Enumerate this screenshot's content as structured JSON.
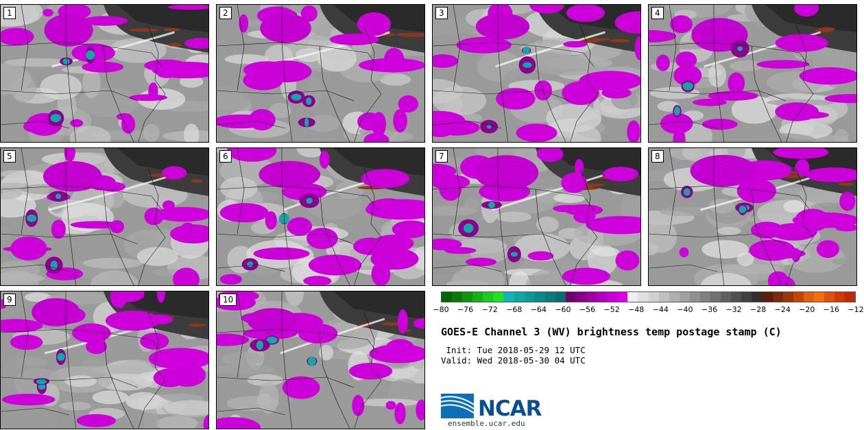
{
  "panels": [
    {
      "label": "1"
    },
    {
      "label": "2"
    },
    {
      "label": "3"
    },
    {
      "label": "4"
    },
    {
      "label": "5"
    },
    {
      "label": "6"
    },
    {
      "label": "7"
    },
    {
      "label": "8"
    },
    {
      "label": "9"
    },
    {
      "label": "10"
    }
  ],
  "colorbar": {
    "ticks": [
      "−80",
      "−76",
      "−72",
      "−68",
      "−64",
      "−60",
      "−56",
      "−52",
      "−48",
      "−44",
      "−40",
      "−36",
      "−32",
      "−28",
      "−24",
      "−20",
      "−16",
      "−12"
    ],
    "colors": [
      "#006400",
      "#0a7a0a",
      "#0f9410",
      "#14b014",
      "#1ccc1c",
      "#20e020",
      "#12b4b4",
      "#10a6a6",
      "#0e9898",
      "#0c8a8a",
      "#0a7c7c",
      "#086e6e",
      "#700070",
      "#86008a",
      "#9c00a4",
      "#b200be",
      "#c800d6",
      "#dc00e8",
      "#f0f0f0",
      "#e0e0e0",
      "#d0d0d0",
      "#c0c0c0",
      "#b0b0b0",
      "#a0a0a0",
      "#909090",
      "#808080",
      "#707070",
      "#606060",
      "#505050",
      "#404040",
      "#303030",
      "#5a1f0a",
      "#7a2a0a",
      "#9a350a",
      "#c0450a",
      "#e06010",
      "#f07010",
      "#e05010",
      "#d03a08",
      "#c02a00"
    ]
  },
  "title": "GOES-E Channel 3 (WV) brightness temp postage stamp (C)",
  "init": " Init: Tue 2018-05-29 12 UTC",
  "valid": "Valid: Wed 2018-05-30 04 UTC",
  "logo": {
    "text": "NCAR",
    "url": "ensemble.ucar.edu"
  }
}
